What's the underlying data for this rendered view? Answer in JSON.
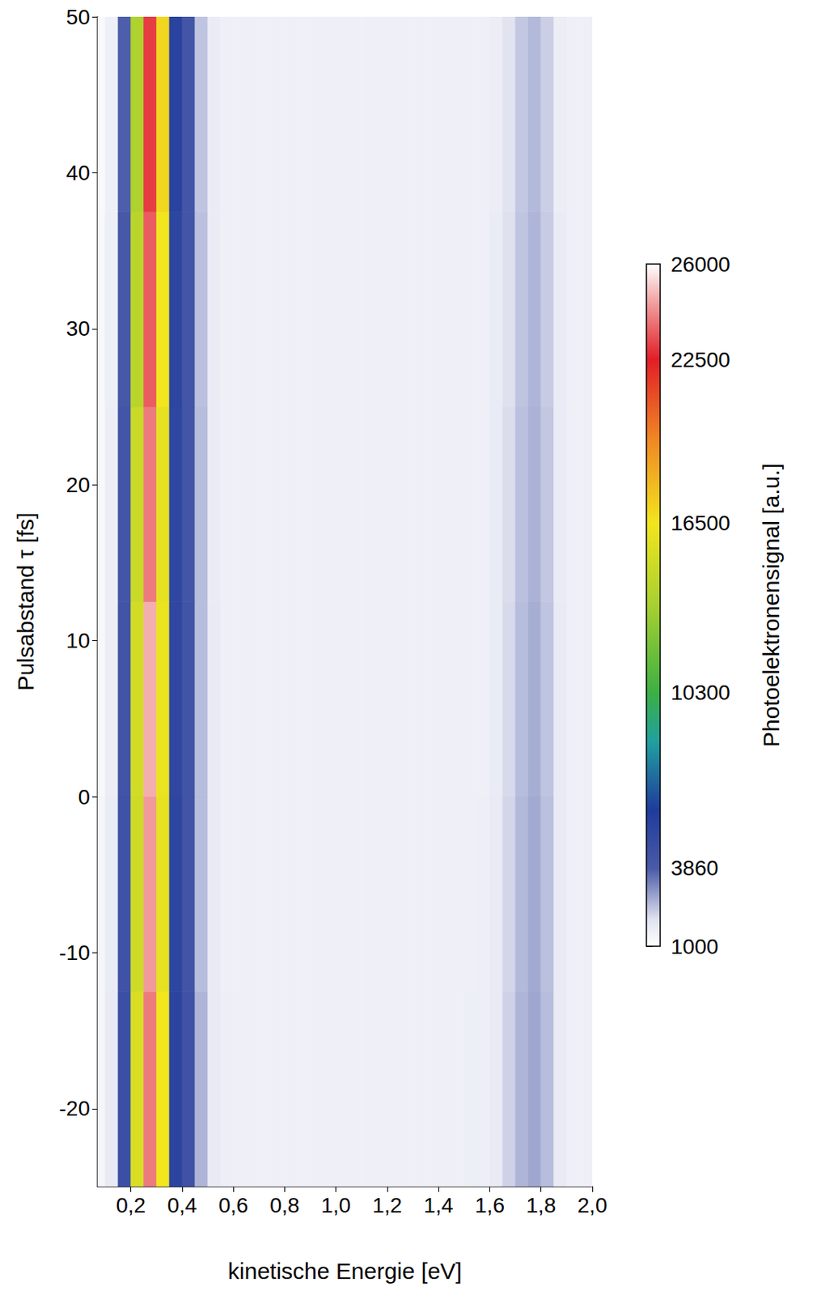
{
  "chart_data": {
    "type": "heatmap",
    "xlabel": "kinetische Energie [eV]",
    "ylabel": "Pulsabstand τ [fs]",
    "xlim": [
      0.07,
      2.0
    ],
    "ylim": [
      -25,
      50
    ],
    "xticks": [
      {
        "value": 0.2,
        "label": "0,2"
      },
      {
        "value": 0.4,
        "label": "0,4"
      },
      {
        "value": 0.6,
        "label": "0,6"
      },
      {
        "value": 0.8,
        "label": "0,8"
      },
      {
        "value": 1.0,
        "label": "1,0"
      },
      {
        "value": 1.2,
        "label": "1,2"
      },
      {
        "value": 1.4,
        "label": "1,4"
      },
      {
        "value": 1.6,
        "label": "1,6"
      },
      {
        "value": 1.8,
        "label": "1,8"
      },
      {
        "value": 2.0,
        "label": "2,0"
      }
    ],
    "yticks": [
      -20,
      -10,
      0,
      10,
      20,
      30,
      40,
      50
    ],
    "grid": false,
    "x_bins": [
      0.07,
      0.1,
      0.15,
      0.2,
      0.25,
      0.3,
      0.35,
      0.4,
      0.45,
      0.5,
      0.55,
      0.6,
      0.65,
      0.7,
      0.75,
      0.8,
      0.85,
      0.9,
      0.95,
      1.0,
      1.05,
      1.1,
      1.15,
      1.2,
      1.25,
      1.3,
      1.35,
      1.4,
      1.45,
      1.5,
      1.55,
      1.6,
      1.65,
      1.7,
      1.75,
      1.8,
      1.85,
      1.9,
      1.95,
      2.0
    ],
    "y_bins": [
      -25,
      -12.5,
      0,
      12.5,
      25,
      37.5,
      50
    ],
    "cells": [
      [
        1300,
        1700,
        4600,
        15500,
        24000,
        16500,
        5400,
        4400,
        2600,
        1700,
        1550,
        1500,
        1500,
        1500,
        1500,
        1500,
        1500,
        1500,
        1500,
        1500,
        1500,
        1500,
        1500,
        1500,
        1500,
        1500,
        1500,
        1500,
        1500,
        1550,
        1550,
        1700,
        2200,
        2600,
        2800,
        2500,
        1700,
        1500,
        1500
      ],
      [
        1300,
        1650,
        4400,
        15000,
        24500,
        16000,
        5300,
        4300,
        2500,
        1700,
        1500,
        1500,
        1500,
        1500,
        1500,
        1500,
        1500,
        1500,
        1500,
        1500,
        1500,
        1500,
        1500,
        1500,
        1500,
        1500,
        1500,
        1500,
        1500,
        1500,
        1550,
        1700,
        2150,
        2550,
        2750,
        2450,
        1700,
        1500,
        1500
      ],
      [
        1250,
        1600,
        4300,
        15200,
        24800,
        16200,
        5200,
        4300,
        2500,
        1700,
        1500,
        1500,
        1500,
        1500,
        1500,
        1500,
        1500,
        1500,
        1500,
        1500,
        1500,
        1500,
        1500,
        1500,
        1500,
        1500,
        1500,
        1500,
        1500,
        1500,
        1500,
        1650,
        2100,
        2500,
        2700,
        2400,
        1700,
        1500,
        1500
      ],
      [
        1250,
        1600,
        4200,
        14800,
        24000,
        16000,
        5200,
        4200,
        2500,
        1650,
        1500,
        1500,
        1500,
        1500,
        1500,
        1500,
        1500,
        1500,
        1500,
        1500,
        1500,
        1500,
        1500,
        1500,
        1500,
        1500,
        1500,
        1500,
        1500,
        1500,
        1500,
        1650,
        2050,
        2450,
        2650,
        2350,
        1650,
        1500,
        1500
      ],
      [
        1250,
        1550,
        4000,
        14200,
        23500,
        16500,
        5300,
        4200,
        2450,
        1650,
        1500,
        1500,
        1500,
        1500,
        1500,
        1500,
        1500,
        1500,
        1500,
        1500,
        1500,
        1500,
        1500,
        1500,
        1500,
        1500,
        1500,
        1500,
        1500,
        1500,
        1500,
        1650,
        2000,
        2400,
        2600,
        2300,
        1650,
        1500,
        1500
      ],
      [
        1200,
        1500,
        3800,
        13800,
        23000,
        17000,
        5500,
        4200,
        2400,
        1650,
        1500,
        1500,
        1500,
        1500,
        1500,
        1500,
        1500,
        1500,
        1500,
        1500,
        1500,
        1500,
        1500,
        1500,
        1500,
        1500,
        1500,
        1500,
        1500,
        1500,
        1500,
        1600,
        1950,
        2350,
        2550,
        2250,
        1600,
        1500,
        1500
      ]
    ],
    "colorbar": {
      "label": "Photoelektronensignal [a.u.]",
      "range": [
        1000,
        26000
      ],
      "ticks": [
        1000,
        3860,
        10300,
        16500,
        22500,
        26000
      ]
    }
  }
}
